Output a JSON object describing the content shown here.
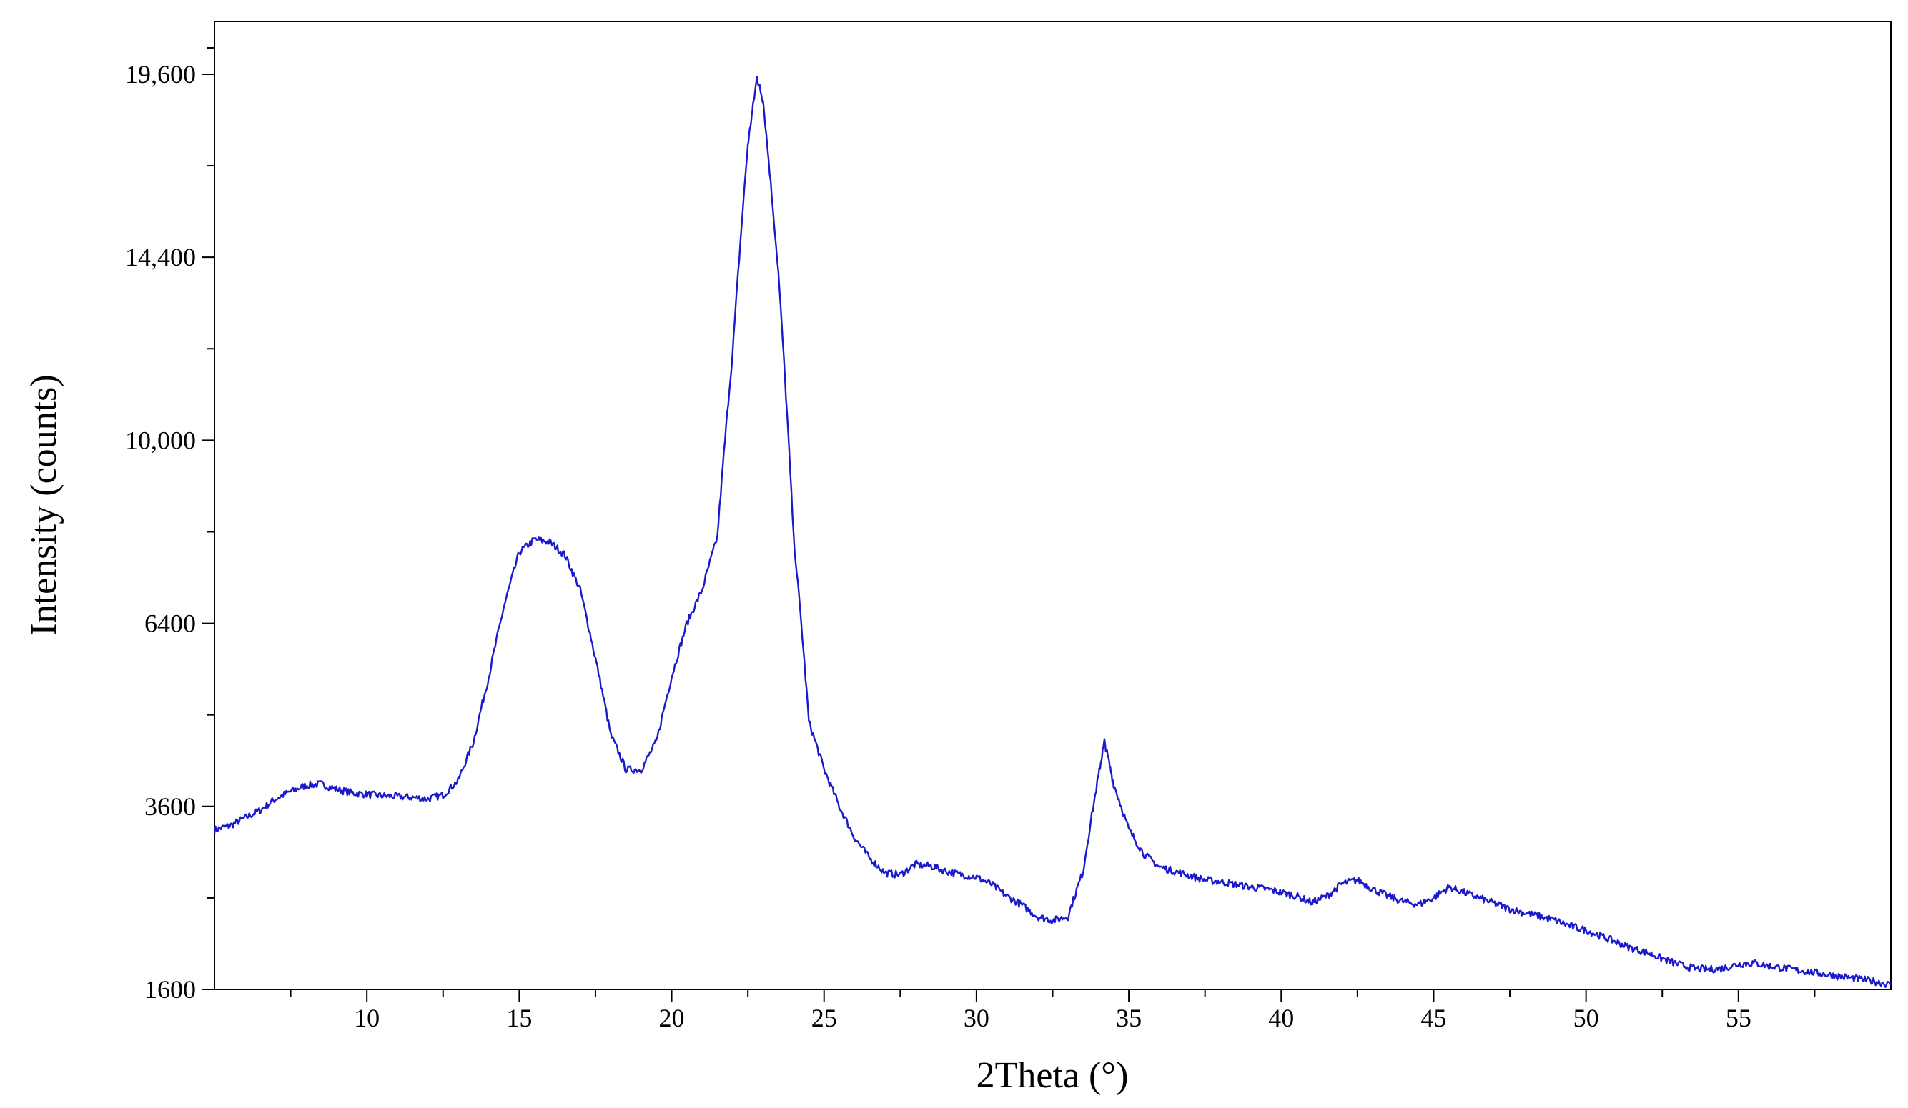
{
  "chart_data": {
    "type": "line",
    "title": "",
    "xlabel": "2Theta (°)",
    "ylabel": "Intensity (counts)",
    "xlim": [
      5,
      60
    ],
    "ylim": [
      1600,
      21250
    ],
    "y_scale": "sqrt",
    "grid": false,
    "legend": "none",
    "x_ticks": [
      10,
      15,
      20,
      25,
      30,
      35,
      40,
      45,
      50,
      55
    ],
    "y_ticks": [
      1600,
      3600,
      6400,
      10000,
      14400,
      19600
    ],
    "y_tick_labels": [
      "1600",
      "3600",
      "6400",
      "10,000",
      "14,400",
      "19,600"
    ],
    "series": [
      {
        "color": "#1a1acc",
        "x": [
          5,
          5.5,
          6,
          6.5,
          7,
          7.5,
          8,
          8.5,
          9,
          9.5,
          10,
          10.5,
          11,
          11.5,
          12,
          12.5,
          13,
          13.5,
          14,
          14.5,
          15,
          15.5,
          16,
          16.5,
          17,
          17.5,
          18,
          18.5,
          19,
          19.5,
          20,
          20.5,
          21,
          21.5,
          22,
          22.5,
          22.8,
          23,
          23.5,
          24,
          24.5,
          25,
          25.5,
          26,
          26.5,
          27,
          27.5,
          28,
          28.5,
          29,
          29.5,
          30,
          30.5,
          31,
          31.5,
          32,
          32.5,
          33,
          33.5,
          34,
          34.2,
          34.5,
          35,
          35.5,
          36,
          36.5,
          37,
          37.5,
          38,
          38.5,
          39,
          39.5,
          40,
          40.5,
          41,
          41.5,
          42,
          42.5,
          43,
          43.5,
          44,
          44.5,
          45,
          45.5,
          46,
          46.5,
          47,
          47.5,
          48,
          48.5,
          49,
          49.5,
          50,
          50.5,
          51,
          51.5,
          52,
          52.5,
          53,
          53.5,
          54,
          54.5,
          55,
          55.5,
          56,
          56.5,
          57,
          57.5,
          58,
          58.5,
          59,
          59.5,
          60
        ],
        "y": [
          3300,
          3350,
          3450,
          3550,
          3700,
          3800,
          3880,
          3900,
          3830,
          3780,
          3760,
          3740,
          3730,
          3720,
          3700,
          3750,
          3950,
          4500,
          5500,
          6700,
          7700,
          7950,
          7900,
          7650,
          7000,
          5800,
          4600,
          4100,
          4100,
          4500,
          5500,
          6400,
          7000,
          8000,
          12000,
          17500,
          19500,
          18800,
          14000,
          8000,
          4800,
          4100,
          3600,
          3200,
          2950,
          2780,
          2760,
          2880,
          2860,
          2800,
          2760,
          2730,
          2650,
          2520,
          2420,
          2300,
          2260,
          2300,
          2800,
          4000,
          4500,
          3900,
          3300,
          3000,
          2850,
          2800,
          2750,
          2700,
          2680,
          2650,
          2620,
          2600,
          2560,
          2520,
          2450,
          2520,
          2660,
          2700,
          2600,
          2520,
          2460,
          2430,
          2500,
          2620,
          2560,
          2500,
          2440,
          2380,
          2340,
          2300,
          2260,
          2200,
          2160,
          2100,
          2040,
          1980,
          1940,
          1880,
          1830,
          1790,
          1780,
          1790,
          1830,
          1840,
          1810,
          1790,
          1770,
          1750,
          1730,
          1710,
          1690,
          1670,
          1640
        ]
      }
    ]
  }
}
